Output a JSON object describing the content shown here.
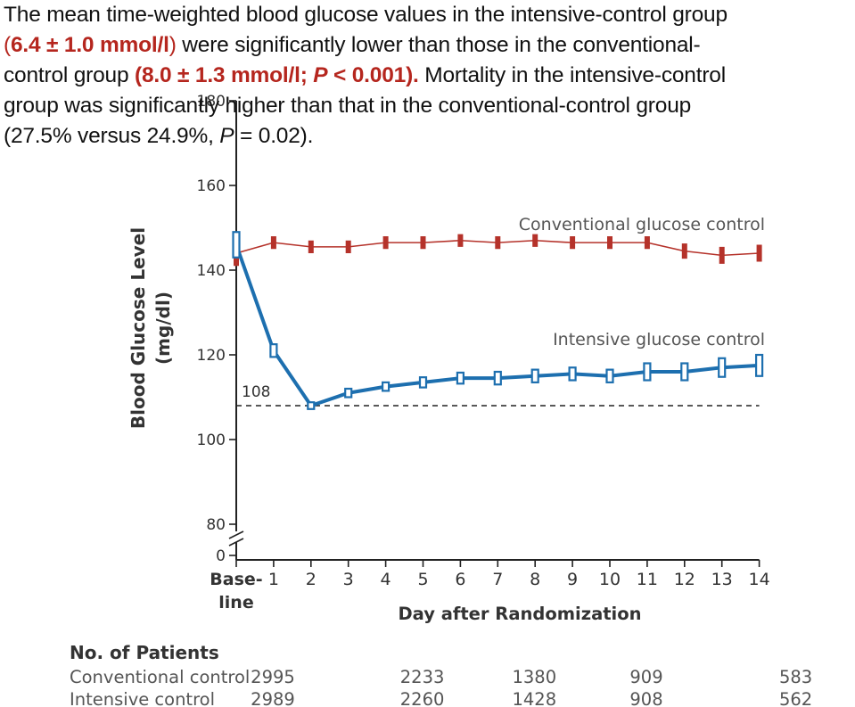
{
  "caption": {
    "line1": "The mean time-weighted blood glucose values in the intensive-control group",
    "line2_open": "(",
    "line2_value": "6.4 ± 1.0 mmol/l",
    "line2_close": ")",
    "line2_rest": " were significantly lower than those in the conventional-",
    "line3_start": "control group ",
    "line3_value": "(8.0 ± 1.3 mmol/l; ",
    "line3_p": "P",
    "line3_value_end": " < 0.001).",
    "line3_rest": " Mortality in the intensive-control",
    "line4": "group was significantly higher than that in the conventional-control group",
    "line5_start": "(27.5% versus 24.9%, ",
    "line5_p": "P",
    "line5_end": " = 0.02)."
  },
  "colors": {
    "conventional": "#b5322a",
    "intensive": "#1d6faf",
    "caption_highlight": "#b5261e"
  },
  "chart_data": {
    "type": "line",
    "ylabel": "Blood Glucose Level (mg/dl)",
    "xlabel": "Day after Randomization",
    "ylim": [
      80,
      180
    ],
    "yticks": [
      80,
      100,
      120,
      140,
      160,
      180
    ],
    "y_zero_label": "0",
    "x_tick_labels": [
      "Base-\nline",
      "1",
      "2",
      "3",
      "4",
      "5",
      "6",
      "7",
      "8",
      "9",
      "10",
      "11",
      "12",
      "13",
      "14"
    ],
    "x": [
      0,
      1,
      2,
      3,
      4,
      5,
      6,
      7,
      8,
      9,
      10,
      11,
      12,
      13,
      14
    ],
    "reference_line": {
      "value": 108,
      "label": "108",
      "style": "dashed"
    },
    "series": [
      {
        "name": "Conventional glucose control",
        "values": [
          144,
          146.5,
          145.5,
          145.5,
          146.5,
          146.5,
          147,
          146.5,
          147,
          146.5,
          146.5,
          146.5,
          144.5,
          143.5,
          144
        ],
        "err": [
          3,
          1.5,
          1.5,
          1.5,
          1.5,
          1.5,
          1.5,
          1.5,
          1.5,
          1.5,
          1.5,
          1.5,
          1.8,
          2,
          2
        ]
      },
      {
        "name": "Intensive glucose control",
        "values": [
          146,
          121,
          108,
          111,
          112.5,
          113.5,
          114.5,
          114.5,
          115,
          115.5,
          115,
          116,
          116,
          117,
          117.5
        ],
        "err": [
          3,
          1.5,
          0.8,
          1,
          1,
          1.2,
          1.3,
          1.5,
          1.5,
          1.5,
          1.5,
          2,
          2,
          2.2,
          2.5
        ]
      }
    ],
    "table": {
      "header": "No. of Patients",
      "days": [
        0,
        4,
        7,
        10,
        14
      ],
      "rows": [
        {
          "label": "Conventional control",
          "values": [
            "2995",
            "2233",
            "1380",
            "909",
            "583"
          ]
        },
        {
          "label": "Intensive control",
          "values": [
            "2989",
            "2260",
            "1428",
            "908",
            "562"
          ]
        }
      ]
    }
  }
}
